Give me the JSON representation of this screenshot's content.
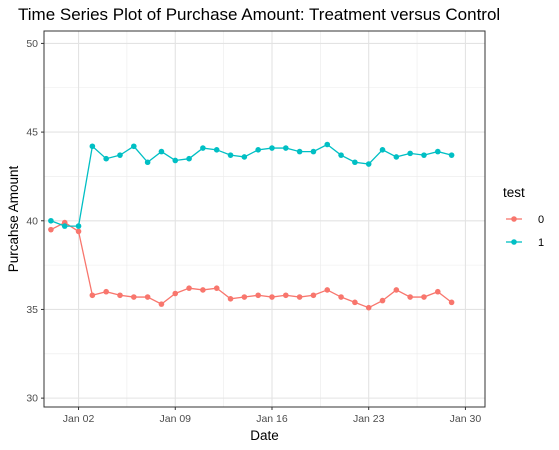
{
  "chart_data": {
    "type": "line",
    "title": "Time Series Plot of Purchase Amount: Treatment versus Control",
    "xlabel": "Date",
    "ylabel": "Purcahse Amount",
    "x_tick_labels": [
      "Jan 02",
      "Jan 09",
      "Jan 16",
      "Jan 23",
      "Jan 30"
    ],
    "x_tick_dates": [
      "2024-01-02",
      "2024-01-09",
      "2024-01-16",
      "2024-01-23",
      "2024-01-30"
    ],
    "y_ticks": [
      30,
      35,
      40,
      45,
      50
    ],
    "ylim": [
      29.5,
      50.7
    ],
    "xlim": [
      "2023-12-30T12:00",
      "2024-01-31T10:00"
    ],
    "grid": true,
    "legend": {
      "title": "test",
      "placement": "right"
    },
    "x": [
      "2023-12-31",
      "2024-01-01",
      "2024-01-02",
      "2024-01-03",
      "2024-01-04",
      "2024-01-05",
      "2024-01-06",
      "2024-01-07",
      "2024-01-08",
      "2024-01-09",
      "2024-01-10",
      "2024-01-11",
      "2024-01-12",
      "2024-01-13",
      "2024-01-14",
      "2024-01-15",
      "2024-01-16",
      "2024-01-17",
      "2024-01-18",
      "2024-01-19",
      "2024-01-20",
      "2024-01-21",
      "2024-01-22",
      "2024-01-23",
      "2024-01-24",
      "2024-01-25",
      "2024-01-26",
      "2024-01-27",
      "2024-01-28",
      "2024-01-29",
      "2024-01-30"
    ],
    "series": [
      {
        "name": "0",
        "color": "#F8766D",
        "values": [
          39.5,
          39.9,
          39.4,
          35.8,
          36.0,
          35.8,
          35.7,
          35.7,
          35.3,
          35.9,
          36.2,
          36.1,
          36.2,
          35.6,
          35.7,
          35.8,
          35.7,
          35.8,
          35.7,
          35.8,
          36.1,
          35.7,
          35.4,
          35.1,
          35.5,
          36.1,
          35.7,
          35.7,
          36.0,
          35.4,
          null
        ]
      },
      {
        "name": "1",
        "color": "#00BFC4",
        "values": [
          40.0,
          39.7,
          39.7,
          44.2,
          43.5,
          43.7,
          44.2,
          43.3,
          43.9,
          43.4,
          43.5,
          44.1,
          44.0,
          43.7,
          43.6,
          44.0,
          44.1,
          44.1,
          43.9,
          43.9,
          44.3,
          43.7,
          43.3,
          43.2,
          44.0,
          43.6,
          43.8,
          43.7,
          43.9,
          43.7,
          null
        ]
      }
    ]
  }
}
